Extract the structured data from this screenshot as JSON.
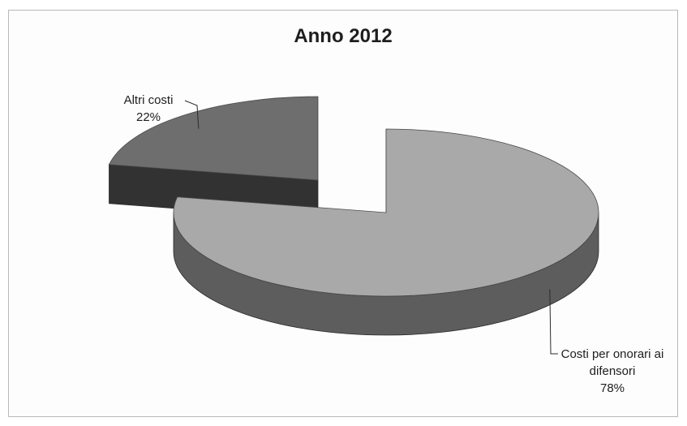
{
  "chart_data": {
    "type": "pie",
    "title": "Anno 2012",
    "slices": [
      {
        "label": "Costi per onorari ai difensori",
        "label_lines": [
          "Costi per onorari ai",
          "difensori"
        ],
        "value": 78,
        "percent_label": "78%",
        "color": "#a9a9a9"
      },
      {
        "label": "Altri costi",
        "label_lines": [
          "Altri costi"
        ],
        "value": 22,
        "percent_label": "22%",
        "color": "#6e6e6e",
        "exploded": true
      }
    ],
    "legend": "none",
    "style": "3d-exploded"
  }
}
